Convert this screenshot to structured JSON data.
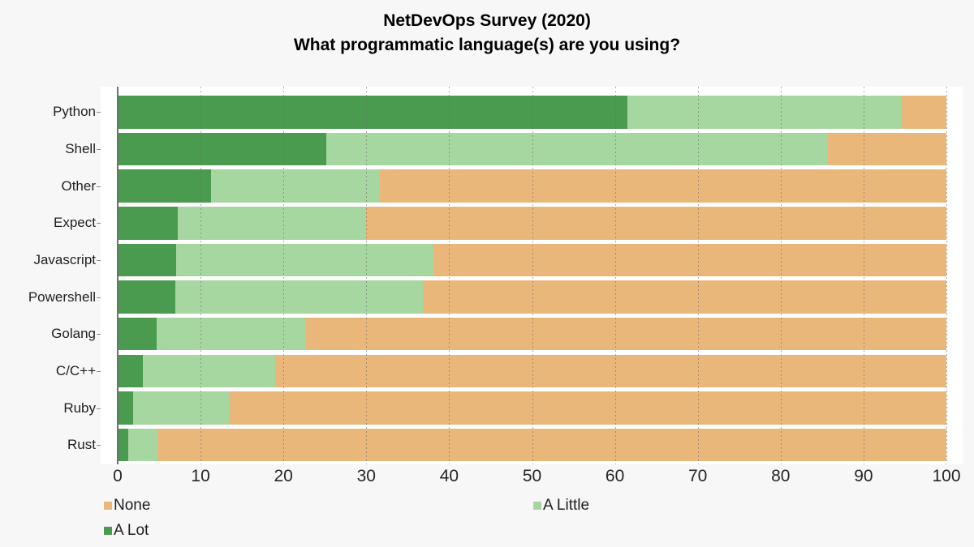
{
  "chart": {
    "title_line1": "NetDevOps Survey (2020)",
    "title_line2": "What programmatic language(s) are you using?"
  },
  "chart_data": {
    "type": "bar",
    "orientation": "horizontal",
    "stacked": true,
    "title": "NetDevOps Survey (2020) — What programmatic language(s) are you using?",
    "categories": [
      "Python",
      "Shell",
      "Other",
      "Expect",
      "Javascript",
      "Powershell",
      "Golang",
      "C/C++",
      "Ruby",
      "Rust"
    ],
    "series": [
      {
        "name": "A Lot",
        "color": "#4a9a50",
        "values": [
          61.5,
          25.2,
          11.3,
          7.2,
          7.1,
          7.0,
          4.7,
          3.0,
          1.9,
          1.3
        ]
      },
      {
        "name": "A Little",
        "color": "#a7d7a0",
        "values": [
          33.0,
          60.5,
          20.3,
          22.8,
          31.0,
          29.8,
          18.0,
          16.0,
          11.5,
          3.5
        ]
      },
      {
        "name": "None",
        "color": "#eab77b",
        "values": [
          5.5,
          14.3,
          68.4,
          70.0,
          61.9,
          63.2,
          77.3,
          81.0,
          86.6,
          95.2
        ]
      }
    ],
    "x_ticks": [
      0,
      10,
      20,
      30,
      40,
      50,
      60,
      70,
      80,
      90,
      100
    ],
    "xlim": [
      0,
      100
    ],
    "xlabel": "",
    "ylabel": "",
    "grid": "dashed-vertical",
    "legend_position": "bottom",
    "legend": [
      {
        "label": "None",
        "color": "#eab77b"
      },
      {
        "label": "A Little",
        "color": "#a7d7a0"
      },
      {
        "label": "A Lot",
        "color": "#4a9a50"
      }
    ],
    "colors": {
      "figure_background": "#f7f7f7",
      "plot_background": "#ffffff",
      "axis_line": "#6f6f6f",
      "grid_line": "#696969",
      "text": "#1a1a1a"
    }
  }
}
